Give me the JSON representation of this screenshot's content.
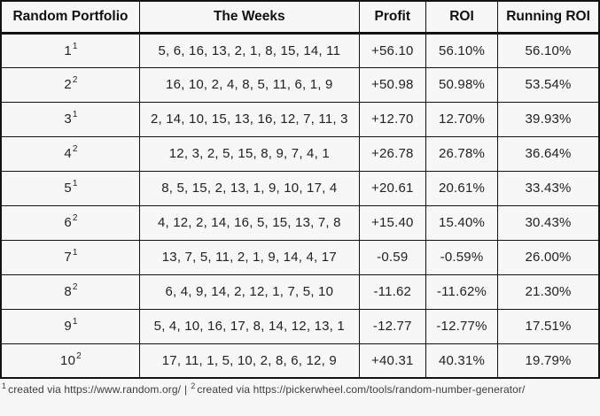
{
  "chart_data": {
    "type": "table",
    "columns": [
      "Random Portfolio",
      "The Weeks",
      "Profit",
      "ROI",
      "Running ROI"
    ],
    "rows": [
      {
        "portfolio": "1",
        "sup": "1",
        "weeks": "5, 6, 16, 13, 2, 1, 8, 15, 14, 11",
        "profit": "+56.10",
        "roi": "56.10%",
        "running_roi": "56.10%"
      },
      {
        "portfolio": "2",
        "sup": "2",
        "weeks": "16, 10, 2, 4, 8, 5, 11, 6, 1, 9",
        "profit": "+50.98",
        "roi": "50.98%",
        "running_roi": "53.54%"
      },
      {
        "portfolio": "3",
        "sup": "1",
        "weeks": "2, 14, 10, 15, 13, 16, 12, 7, 11, 3",
        "profit": "+12.70",
        "roi": "12.70%",
        "running_roi": "39.93%"
      },
      {
        "portfolio": "4",
        "sup": "2",
        "weeks": "12, 3, 2, 5, 15, 8, 9, 7, 4, 1",
        "profit": "+26.78",
        "roi": "26.78%",
        "running_roi": "36.64%"
      },
      {
        "portfolio": "5",
        "sup": "1",
        "weeks": "8, 5, 15, 2, 13, 1, 9, 10, 17, 4",
        "profit": "+20.61",
        "roi": "20.61%",
        "running_roi": "33.43%"
      },
      {
        "portfolio": "6",
        "sup": "2",
        "weeks": "4, 12, 2, 14, 16, 5, 15, 13, 7, 8",
        "profit": "+15.40",
        "roi": "15.40%",
        "running_roi": "30.43%"
      },
      {
        "portfolio": "7",
        "sup": "1",
        "weeks": "13, 7, 5, 11, 2, 1, 9, 14, 4, 17",
        "profit": "-0.59",
        "roi": "-0.59%",
        "running_roi": "26.00%"
      },
      {
        "portfolio": "8",
        "sup": "2",
        "weeks": "6, 4, 9, 14, 2, 12, 1, 7, 5, 10",
        "profit": "-11.62",
        "roi": "-11.62%",
        "running_roi": "21.30%"
      },
      {
        "portfolio": "9",
        "sup": "1",
        "weeks": "5, 4, 10, 16, 17, 8, 14, 12, 13, 1",
        "profit": "-12.77",
        "roi": "-12.77%",
        "running_roi": "17.51%"
      },
      {
        "portfolio": "10",
        "sup": "2",
        "weeks": "17, 11, 1, 5, 10, 2, 8, 6, 12, 9",
        "profit": "+40.31",
        "roi": "40.31%",
        "running_roi": "19.79%"
      }
    ]
  },
  "footnotes": {
    "separator": "|",
    "items": [
      {
        "marker": "1",
        "text": "created via https://www.random.org/"
      },
      {
        "marker": "2",
        "text": "created via https://pickerwheel.com/tools/random-number-generator/"
      }
    ]
  },
  "colors": {
    "background": "#f7f7f7",
    "border": "#121212",
    "text": "#1c1c1c",
    "footnote_text": "#3d3d3d"
  }
}
